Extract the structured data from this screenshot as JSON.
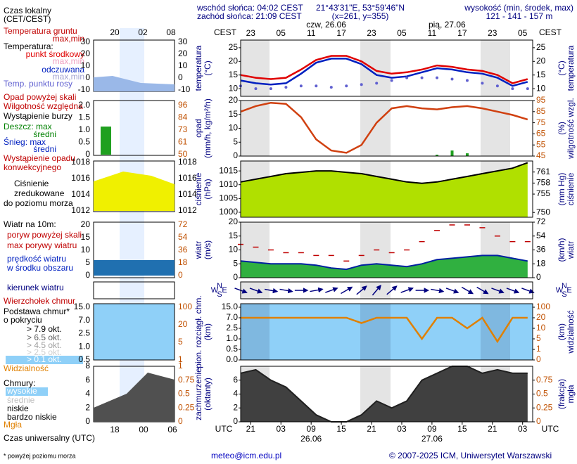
{
  "header": {
    "sunrise": "wschód słońca: 04:02 CEST",
    "sunset": "zachód słońca: 21:09 CEST",
    "coords": "21°43'31\"E, 53°59'46\"N",
    "grid": "(x=261, y=355)",
    "elevation_label": "wysokość (min, środek, max)",
    "elevation": "121 - 141 - 157 m"
  },
  "footer": {
    "email": "meteo@icm.edu.pl",
    "copyright": "© 2007-2025 ICM, Uniwersytet Warszawski"
  },
  "time": {
    "top_label": "CEST",
    "bottom_label": "UTC",
    "xlim": [
      19,
      77
    ],
    "top_ticks": [
      {
        "value": 21,
        "label": "23"
      },
      {
        "value": 27,
        "label": "05"
      },
      {
        "value": 33,
        "label": "11"
      },
      {
        "value": 39,
        "label": "17"
      },
      {
        "value": 45,
        "label": "23"
      },
      {
        "value": 51,
        "label": "05"
      },
      {
        "value": 57,
        "label": "11"
      },
      {
        "value": 63,
        "label": "17"
      },
      {
        "value": 69,
        "label": "23"
      },
      {
        "value": 75,
        "label": "05"
      }
    ],
    "bottom_ticks": [
      {
        "value": 21,
        "label": "21"
      },
      {
        "value": 27,
        "label": "03"
      },
      {
        "value": 33,
        "label": "09"
      },
      {
        "value": 39,
        "label": "15"
      },
      {
        "value": 45,
        "label": "21"
      },
      {
        "value": 51,
        "label": "03"
      },
      {
        "value": 57,
        "label": "09"
      },
      {
        "value": 63,
        "label": "15"
      },
      {
        "value": 69,
        "label": "21"
      },
      {
        "value": 75,
        "label": "03"
      }
    ],
    "top_dates": [
      {
        "value": 36,
        "label": "czw, 26.06"
      },
      {
        "value": 60,
        "label": "pią, 27.06"
      }
    ],
    "bottom_dates": [
      {
        "value": 33,
        "label": "26.06"
      },
      {
        "value": 57,
        "label": "27.06"
      }
    ]
  },
  "legend": {
    "texts": [
      "Czas lokalny",
      "(CET/CEST)",
      "Temperatura gruntu",
      "max,min",
      "Temperatura:",
      "punkt środkowy",
      "max,min",
      "odczuwana",
      "max,min",
      "Temp. punktu rosy",
      "Opad powyżej skali",
      "Wilgotność względna",
      "Wystąpienie burzy",
      "Deszcz: max",
      "średni",
      "Śnieg: max",
      "średni",
      "Wystąpienie opadu",
      "konwekcyjnego",
      "Ciśnienie",
      "zredukowane",
      "do poziomu morza",
      "Wiatr na 10m:",
      "poryw powyżej skali",
      "max porywy wiatru",
      "prędkość wiatru",
      "w środku obszaru",
      "kierunek wiatru",
      "Wierzchołek chmur",
      "Podstawa chmur*",
      "o pokryciu",
      "> 7.9 okt.",
      "> 6.5 okt.",
      "> 4.5 okt.",
      "> 2.5 okt.",
      "> 0.1 okt.",
      "Widzialność",
      "Chmury:",
      "wysokie",
      "średnie",
      "niskie",
      "bardzo niskie",
      "Mgła",
      "Czas uniwersalny (UTC)",
      "* powyżej poziomu morza"
    ],
    "top_hours": [
      "20",
      "02",
      "08"
    ],
    "bottom_hours": [
      "18",
      "00",
      "06"
    ],
    "ticks": [
      {
        "left": [
          30,
          20,
          10,
          0,
          -10
        ],
        "right": [
          30,
          20,
          10,
          0,
          -10
        ]
      },
      {
        "left": [
          {
            "value": 2,
            "label": "2.0"
          },
          1.5,
          {
            "value": 1,
            "label": "1.0"
          },
          0.5,
          0
        ],
        "right": [
          96,
          84,
          73,
          61,
          50
        ]
      },
      {
        "left": [
          1018,
          1016,
          1014,
          1012
        ],
        "right": [
          1018,
          1016,
          1014,
          1012
        ]
      },
      {
        "left": [
          20,
          15,
          10,
          5,
          0
        ],
        "right": [
          72,
          54,
          36,
          18,
          0
        ]
      },
      {
        "left": [
          {
            "value": 15,
            "label": "15.0"
          },
          {
            "value": 7,
            "label": "7.0"
          },
          2.5,
          {
            "value": 1,
            "label": "1.0"
          },
          0.5
        ],
        "right": [
          100,
          20,
          5,
          1
        ]
      },
      {
        "left": [
          8,
          6,
          4,
          2,
          0
        ],
        "right": [
          1,
          0.75,
          0.5,
          0.25,
          0
        ]
      }
    ]
  },
  "chart_data": [
    {
      "type": "line",
      "ylabel": [
        "temperatura",
        "(°C)"
      ],
      "y2label": [
        "(°C)",
        "temperatura"
      ],
      "x": [
        19,
        22,
        25,
        28,
        31,
        34,
        37,
        40,
        43,
        46,
        49,
        52,
        55,
        58,
        61,
        64,
        67,
        70,
        73,
        76
      ],
      "ylim": [
        7.2,
        27.8
      ],
      "yticks": [
        10,
        15,
        20,
        25
      ],
      "y2lim": [
        7.2,
        27.8
      ],
      "y2ticks": [
        10,
        15,
        20,
        25
      ],
      "series": [
        {
          "style": "line",
          "color": "#e00000",
          "values": [
            15,
            14,
            13.5,
            14,
            17,
            20.5,
            22,
            22,
            20,
            16.5,
            15.5,
            16,
            17,
            18.5,
            18,
            17,
            16.5,
            15,
            12,
            13.5
          ]
        },
        {
          "style": "line",
          "color": "#0020c0",
          "values": [
            13,
            12,
            11.5,
            12,
            15.5,
            19.5,
            21,
            21,
            19,
            15,
            14,
            14.5,
            16,
            17.5,
            17,
            16,
            15.5,
            14,
            11,
            12.5
          ]
        },
        {
          "style": "dots",
          "color": "#6060d0",
          "values": [
            11,
            10,
            10,
            10.5,
            11,
            11,
            10.5,
            11,
            11.5,
            12,
            13,
            14,
            14,
            14,
            13.5,
            13,
            12,
            11,
            10,
            10
          ]
        }
      ]
    },
    {
      "type": "bar",
      "ylabel": [
        "opad",
        "(mm/h, kg/m²/h)"
      ],
      "y2label": [
        "(%)",
        "wilgotność wzgl."
      ],
      "x": [
        19,
        22,
        25,
        28,
        31,
        34,
        37,
        40,
        43,
        46,
        49,
        52,
        55,
        58,
        61,
        64,
        67,
        70,
        73,
        76
      ],
      "ylim": [
        0,
        20
      ],
      "yticks": [
        0,
        5,
        10,
        15,
        20
      ],
      "y2lim": [
        45,
        95
      ],
      "y2ticks": [
        45,
        55,
        65,
        75,
        85,
        95
      ],
      "series": [
        {
          "style": "bars",
          "color": "#20a020",
          "values": [
            0,
            0,
            0,
            0,
            0,
            0,
            0,
            0,
            0,
            0,
            0,
            0,
            0,
            0.5,
            2,
            1,
            0,
            0,
            0,
            0
          ]
        },
        {
          "style": "line",
          "axis": "y2",
          "color": "#d04010",
          "values": [
            85,
            90,
            93,
            92,
            80,
            60,
            50,
            48,
            55,
            75,
            88,
            90,
            88,
            87,
            89,
            90,
            88,
            85,
            82,
            78
          ]
        }
      ]
    },
    {
      "type": "area",
      "ylabel": [
        "ciśnienie",
        "(hPa)"
      ],
      "y2label": [
        "(mm Hg)",
        "ciśnienie"
      ],
      "x": [
        19,
        22,
        25,
        28,
        31,
        34,
        37,
        40,
        43,
        46,
        49,
        52,
        55,
        58,
        61,
        64,
        67,
        70,
        73,
        76
      ],
      "ylim": [
        998.2,
        1018.6
      ],
      "yticks": [
        1000,
        1005,
        1010,
        1015
      ],
      "y2lim": [
        748.7,
        764
      ],
      "y2ticks": [
        750,
        755,
        758,
        761
      ],
      "series": [
        {
          "style": "area",
          "color": "#b0e000",
          "line_color": "#000000",
          "values": [
            1011,
            1012,
            1013,
            1014,
            1014.5,
            1015,
            1015,
            1014.5,
            1014,
            1013,
            1012,
            1011,
            1010.5,
            1011,
            1012,
            1013,
            1014,
            1015,
            1016,
            1018
          ]
        }
      ]
    },
    {
      "type": "area",
      "ylabel": [
        "wiatr",
        "(m/s)"
      ],
      "y2label": [
        "(km/h)",
        "wiatr"
      ],
      "x": [
        19,
        22,
        25,
        28,
        31,
        34,
        37,
        40,
        43,
        46,
        49,
        52,
        55,
        58,
        61,
        64,
        67,
        70,
        73,
        76
      ],
      "ylim": [
        0,
        20
      ],
      "yticks": [
        0,
        5,
        10,
        15,
        20
      ],
      "y2lim": [
        0,
        72
      ],
      "y2ticks": [
        0,
        18,
        36,
        54,
        72
      ],
      "series": [
        {
          "style": "area",
          "color": "#30b040",
          "line_color": "#0020a0",
          "values": [
            6,
            5.5,
            5,
            5,
            5,
            4.5,
            3.5,
            3,
            4.5,
            5,
            4.5,
            4,
            5,
            6.5,
            7,
            7.5,
            8,
            8,
            7,
            6
          ]
        },
        {
          "style": "dashes",
          "color": "#c00000",
          "values": [
            12,
            11,
            10,
            9,
            9,
            8,
            8,
            6,
            8,
            10,
            9,
            10,
            13,
            17,
            19,
            19,
            18,
            15,
            13,
            13
          ]
        }
      ]
    },
    {
      "type": "arrows",
      "compass": [
        "N",
        "W",
        "E",
        "S"
      ],
      "x": [
        19,
        22,
        25,
        28,
        31,
        34,
        37,
        40,
        43,
        46,
        49,
        52,
        55,
        58,
        61,
        64,
        67,
        70,
        73,
        76
      ],
      "series": [
        {
          "style": "arrows",
          "color": "#000080",
          "values": [
            290,
            290,
            280,
            280,
            270,
            260,
            250,
            240,
            230,
            220,
            230,
            250,
            270,
            280,
            290,
            300,
            300,
            290,
            290,
            290
          ]
        }
      ]
    },
    {
      "type": "line",
      "scale": "piecewise",
      "ylabel": [
        "pion. rozciągł. chm.",
        "(km)"
      ],
      "y2label": [
        "(km)",
        "widzialność"
      ],
      "background": "#8fd0f8",
      "x": [
        19,
        22,
        25,
        28,
        31,
        34,
        37,
        40,
        43,
        46,
        49,
        52,
        55,
        58,
        61,
        64,
        67,
        70,
        73,
        76
      ],
      "ylim": [
        0,
        15
      ],
      "yticks": [
        {
          "value": 0,
          "label": "0.0"
        },
        0.5,
        {
          "value": 1,
          "label": "1.0"
        },
        2.5,
        {
          "value": 7,
          "label": "7.0"
        },
        {
          "value": 15,
          "label": "15.0"
        }
      ],
      "y2lim": [
        0,
        100
      ],
      "y2ticks": [
        0,
        1,
        5,
        10,
        20,
        100
      ],
      "series": [
        {
          "style": "line",
          "axis": "y2",
          "color": "#e08000",
          "values": [
            20,
            20,
            20,
            20,
            20,
            20,
            20,
            20,
            15,
            20,
            20,
            20,
            5,
            20,
            20,
            10,
            20,
            4,
            20,
            20
          ]
        }
      ]
    },
    {
      "type": "area",
      "ylabel": [
        "zachmurzenie",
        "(oktanty)"
      ],
      "y2label": [
        "(frakcja)",
        "mgła"
      ],
      "x": [
        19,
        22,
        25,
        28,
        31,
        34,
        37,
        40,
        43,
        46,
        49,
        52,
        55,
        58,
        61,
        64,
        67,
        70,
        73,
        76
      ],
      "ylim": [
        0,
        8
      ],
      "yticks": [
        0,
        2,
        4,
        6
      ],
      "y2lim": [
        0,
        1
      ],
      "y2ticks": [
        0,
        0.25,
        0.5,
        0.75
      ],
      "series": [
        {
          "style": "area",
          "color": "#404040",
          "line_color": "#202020",
          "values": [
            7,
            7.5,
            6,
            5,
            3,
            1,
            0,
            0,
            1,
            3,
            2,
            3,
            6,
            7,
            8,
            8,
            7,
            7.5,
            7,
            7
          ]
        }
      ]
    }
  ]
}
